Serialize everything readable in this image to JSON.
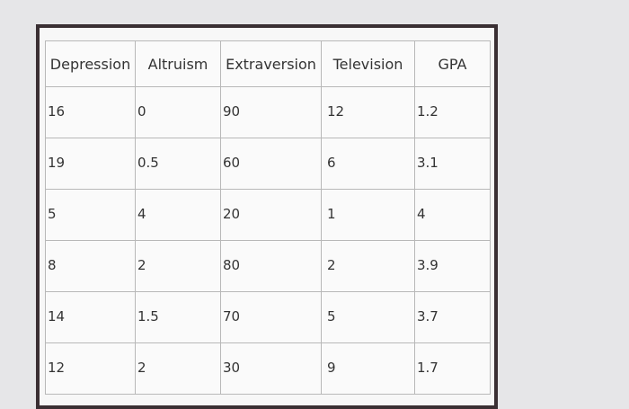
{
  "table": {
    "header": [
      "Depression",
      "Altruism",
      "Extraversion",
      "Television",
      "GPA"
    ],
    "rows": [
      [
        16,
        0,
        90,
        12,
        1.2
      ],
      [
        19,
        0.5,
        60,
        6,
        3.1
      ],
      [
        5,
        4,
        20,
        1,
        4
      ],
      [
        8,
        2,
        80,
        2,
        3.9
      ],
      [
        14,
        1.5,
        70,
        5,
        3.7
      ],
      [
        12,
        2,
        30,
        9,
        1.7
      ]
    ]
  }
}
